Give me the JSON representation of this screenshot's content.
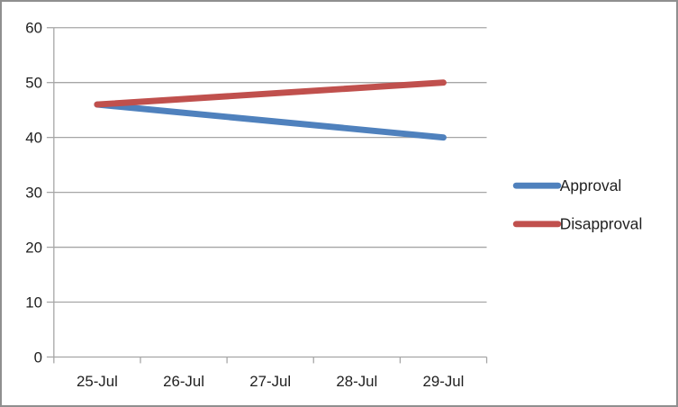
{
  "chart_data": {
    "type": "line",
    "title": "",
    "xlabel": "",
    "ylabel": "",
    "categories": [
      "25-Jul",
      "26-Jul",
      "27-Jul",
      "28-Jul",
      "29-Jul"
    ],
    "series": [
      {
        "name": "Approval",
        "color": "#4F81BD",
        "points": [
          {
            "x": "25-Jul",
            "y": 46
          },
          {
            "x": "29-Jul",
            "y": 40
          }
        ]
      },
      {
        "name": "Disapproval",
        "color": "#C0504D",
        "points": [
          {
            "x": "25-Jul",
            "y": 46
          },
          {
            "x": "29-Jul",
            "y": 50
          }
        ]
      }
    ],
    "ylim": [
      0,
      60
    ],
    "y_ticks": [
      0,
      10,
      20,
      30,
      40,
      50,
      60
    ],
    "grid": true,
    "legend_position": "right-middle",
    "line_shape": "straight"
  },
  "colors": {
    "background": "#FFFFFF",
    "frame_border": "#8F8F8F",
    "gridline": "#A6A6A6",
    "axis": "#A6A6A6",
    "tick": "#A6A6A6",
    "label_text": "#1F1F1F",
    "series_approval": "#4F81BD",
    "series_disapproval": "#C0504D"
  }
}
